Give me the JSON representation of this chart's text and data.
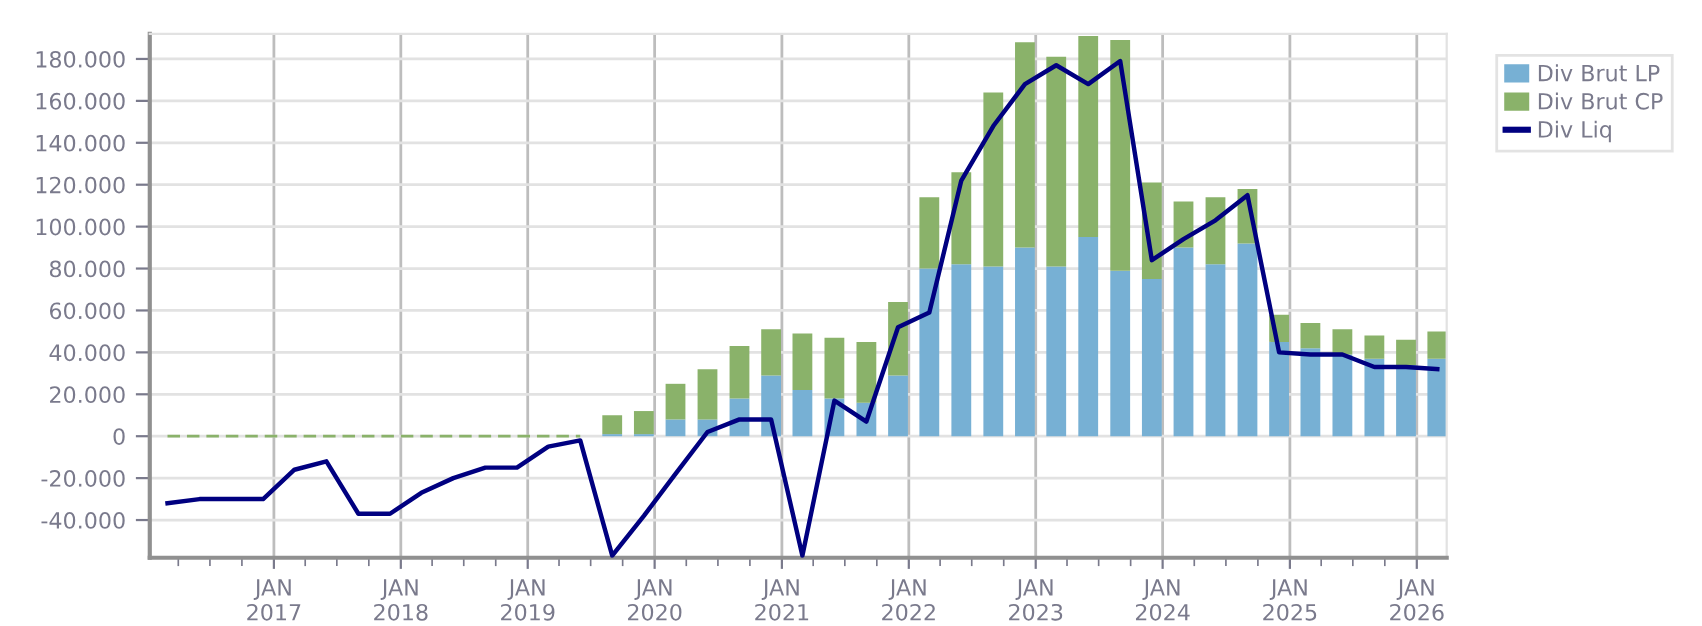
{
  "chart_data": {
    "type": "bar",
    "stacked": true,
    "x": [
      "2016-03-01",
      "2016-06-01",
      "2016-09-01",
      "2016-12-01",
      "2017-03-01",
      "2017-06-01",
      "2017-09-01",
      "2017-12-01",
      "2018-03-01",
      "2018-06-01",
      "2018-09-01",
      "2018-12-01",
      "2019-03-01",
      "2019-06-01",
      "2019-09-01",
      "2019-12-01",
      "2020-03-01",
      "2020-06-01",
      "2020-09-01",
      "2020-12-01",
      "2021-03-01",
      "2021-06-01",
      "2021-09-01",
      "2021-12-01",
      "2022-03-01",
      "2022-06-01",
      "2022-09-01",
      "2022-12-01",
      "2023-03-01",
      "2023-06-01",
      "2023-09-01",
      "2023-12-01",
      "2024-03-01",
      "2024-06-01",
      "2024-09-01",
      "2024-12-01",
      "2025-03-01",
      "2025-06-01",
      "2025-09-01",
      "2025-12-01",
      "2026-03-01"
    ],
    "series": [
      {
        "name": "Div Brut LP",
        "color": "#77b0d4",
        "values": [
          null,
          null,
          null,
          null,
          null,
          null,
          null,
          null,
          null,
          null,
          null,
          null,
          null,
          null,
          1000,
          1000,
          8000,
          8000,
          18000,
          29000,
          22000,
          18000,
          16000,
          29000,
          80000,
          82000,
          81000,
          90000,
          81000,
          95000,
          79000,
          75000,
          90000,
          82000,
          92000,
          45000,
          42000,
          39000,
          37000,
          34000,
          37000
        ]
      },
      {
        "name": "Div Brut CP",
        "color": "#8ab26a",
        "values": [
          null,
          null,
          null,
          null,
          null,
          null,
          null,
          null,
          null,
          null,
          null,
          null,
          null,
          null,
          9000,
          11000,
          17000,
          24000,
          25000,
          22000,
          27000,
          29000,
          29000,
          35000,
          34000,
          44000,
          83000,
          98000,
          100000,
          96000,
          110000,
          46000,
          22000,
          32000,
          26000,
          13000,
          12000,
          12000,
          11000,
          12000,
          13000
        ]
      },
      {
        "name": "Div Liq",
        "type": "line",
        "color": "#000080",
        "values": [
          -32000,
          -30000,
          -30000,
          -30000,
          -16000,
          -12000,
          -37000,
          -37000,
          -27000,
          -20000,
          -15000,
          -15000,
          -5000,
          -2000,
          -57000,
          -38000,
          -18000,
          2000,
          8000,
          8000,
          -57000,
          17000,
          7000,
          52000,
          59000,
          122000,
          148000,
          168000,
          177000,
          168000,
          179000,
          84000,
          94000,
          103000,
          115000,
          40000,
          39000,
          39000,
          33000,
          33000,
          32000
        ]
      },
      {
        "type": "line",
        "color": "#8ab26a",
        "line_style": "dashed",
        "x": [
          "2016-03-01",
          "2016-06-01",
          "2016-09-01",
          "2016-12-01",
          "2017-03-01",
          "2017-06-01",
          "2017-09-01",
          "2017-12-01",
          "2018-03-01",
          "2018-06-01",
          "2018-09-01",
          "2018-12-01",
          "2019-03-01",
          "2019-06-01"
        ],
        "values": [
          0,
          0,
          0,
          0,
          0,
          0,
          0,
          0,
          0,
          0,
          0,
          0,
          0,
          0
        ]
      }
    ],
    "xlim": [
      "2016-01-10",
      "2026-03-28"
    ],
    "xticks": [
      {
        "value": "2016-04-01",
        "label": null
      },
      {
        "value": "2016-07-01",
        "label": null
      },
      {
        "value": "2016-10-01",
        "label": null
      },
      {
        "value": "2017-01-01",
        "label": "JAN\n2017"
      },
      {
        "value": "2017-04-01",
        "label": null
      },
      {
        "value": "2017-07-01",
        "label": null
      },
      {
        "value": "2017-10-01",
        "label": null
      },
      {
        "value": "2018-01-01",
        "label": "JAN\n2018"
      },
      {
        "value": "2018-04-01",
        "label": null
      },
      {
        "value": "2018-07-01",
        "label": null
      },
      {
        "value": "2018-10-01",
        "label": null
      },
      {
        "value": "2019-01-01",
        "label": "JAN\n2019"
      },
      {
        "value": "2019-04-01",
        "label": null
      },
      {
        "value": "2019-07-01",
        "label": null
      },
      {
        "value": "2019-10-01",
        "label": null
      },
      {
        "value": "2020-01-01",
        "label": "JAN\n2020"
      },
      {
        "value": "2020-04-01",
        "label": null
      },
      {
        "value": "2020-07-01",
        "label": null
      },
      {
        "value": "2020-10-01",
        "label": null
      },
      {
        "value": "2021-01-01",
        "label": "JAN\n2021"
      },
      {
        "value": "2021-04-01",
        "label": null
      },
      {
        "value": "2021-07-01",
        "label": null
      },
      {
        "value": "2021-10-01",
        "label": null
      },
      {
        "value": "2022-01-01",
        "label": "JAN\n2022"
      },
      {
        "value": "2022-04-01",
        "label": null
      },
      {
        "value": "2022-07-01",
        "label": null
      },
      {
        "value": "2022-10-01",
        "label": null
      },
      {
        "value": "2023-01-01",
        "label": "JAN\n2023"
      },
      {
        "value": "2023-04-01",
        "label": null
      },
      {
        "value": "2023-07-01",
        "label": null
      },
      {
        "value": "2023-10-01",
        "label": null
      },
      {
        "value": "2024-01-01",
        "label": "JAN\n2024"
      },
      {
        "value": "2024-04-01",
        "label": null
      },
      {
        "value": "2024-07-01",
        "label": null
      },
      {
        "value": "2024-10-01",
        "label": null
      },
      {
        "value": "2025-01-01",
        "label": "JAN\n2025"
      },
      {
        "value": "2025-04-01",
        "label": null
      },
      {
        "value": "2025-07-01",
        "label": null
      },
      {
        "value": "2025-10-01",
        "label": null
      },
      {
        "value": "2026-01-01",
        "label": "JAN\n2026"
      }
    ],
    "ylim": [
      -58000,
      192000
    ],
    "yticks": [
      {
        "value": -40000,
        "label": "-40.000"
      },
      {
        "value": -20000,
        "label": "-20.000"
      },
      0,
      {
        "value": 20000,
        "label": "20.000"
      },
      {
        "value": 40000,
        "label": "40.000"
      },
      {
        "value": 60000,
        "label": "60.000"
      },
      {
        "value": 80000,
        "label": "80.000"
      },
      {
        "value": 100000,
        "label": "100.000"
      },
      {
        "value": 120000,
        "label": "120.000"
      },
      {
        "value": 140000,
        "label": "140.000"
      },
      {
        "value": 160000,
        "label": "160.000"
      },
      {
        "value": 180000,
        "label": "180.000"
      }
    ],
    "grid": true,
    "legend": "top right"
  }
}
